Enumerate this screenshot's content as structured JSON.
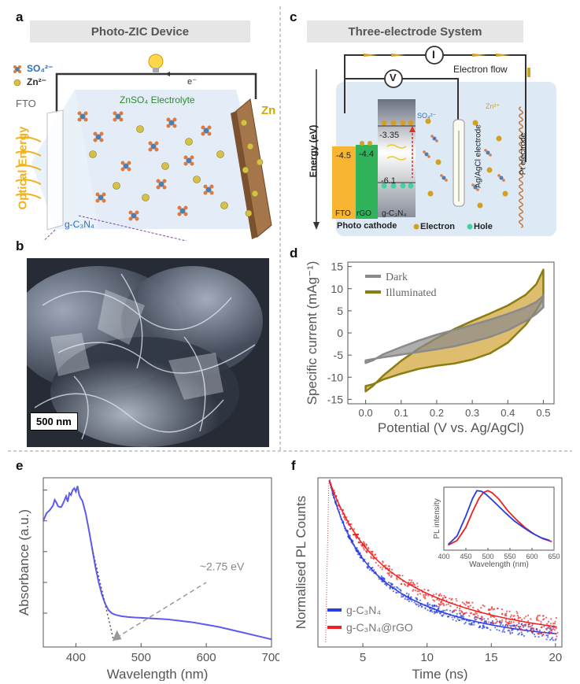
{
  "panels": {
    "a": {
      "letter": "a",
      "title": "Photo-ZIC Device",
      "legend_sulfate": "SO₄²⁻",
      "legend_zinc": "Zn²⁻",
      "fto": "FTO",
      "electrolyte": "ZnSO₄ Electrolyte",
      "zn": "Zn",
      "electron": "e⁻",
      "optical": "Optical Energy",
      "gc3n4": "g-C₃N₄"
    },
    "b": {
      "letter": "b",
      "scalebar": "500 nm"
    },
    "c": {
      "letter": "c",
      "title": "Three-electrode System",
      "current_meter": "I",
      "voltage_meter": "V",
      "electron_flow": "Electron flow",
      "energy_axis": "Energy (eV)",
      "fto_level": "-4.5",
      "rgo_level": "-4.4",
      "cb_level": "-3.35",
      "vb_level": "-6.1",
      "so4": "SO₄²⁻",
      "zn2": "Zn²⁺",
      "ref_electrode": "Ag/AgCl electrode",
      "pt_electrode": "Pt electrode",
      "fto": "FTO",
      "rgo": "rGO",
      "gc3n4": "g-C₃N₄",
      "photocathode": "Photo cathode",
      "electron_legend": "Electron",
      "hole_legend": "Hole"
    },
    "d": {
      "letter": "d"
    },
    "e": {
      "letter": "e"
    },
    "f": {
      "letter": "f"
    }
  },
  "colors": {
    "dark": "#8a8a8a",
    "illuminated": "#8a7d12",
    "illum_fill": "#d9b256",
    "blue": "#2a3de0",
    "red": "#f02020",
    "absorb": "#5b5bf0"
  },
  "chart_data": [
    {
      "id": "d",
      "type": "line",
      "xlabel": "Potential (V vs. Ag/AgCl)",
      "ylabel": "Specific current (mAg⁻¹)",
      "xlim": [
        -0.05,
        0.53
      ],
      "ylim": [
        -16,
        16
      ],
      "xticks": [
        0.0,
        0.1,
        0.2,
        0.3,
        0.4,
        0.5
      ],
      "xtick_labels": [
        "0.0",
        "0.1",
        "0.2",
        "0.3",
        "0.4",
        "0.5"
      ],
      "yticks": [
        -15,
        -10,
        -5,
        0,
        5,
        10,
        15
      ],
      "legend": "top-left",
      "series": [
        {
          "name": "Dark",
          "x": [
            0.0,
            0.02,
            0.05,
            0.1,
            0.15,
            0.2,
            0.25,
            0.3,
            0.35,
            0.4,
            0.45,
            0.48,
            0.5,
            0.5,
            0.48,
            0.45,
            0.4,
            0.35,
            0.3,
            0.25,
            0.2,
            0.15,
            0.1,
            0.05,
            0.02,
            0.0,
            0.0
          ],
          "y": [
            -6.8,
            -6.2,
            -4.8,
            -3.2,
            -1.7,
            -0.4,
            0.7,
            1.8,
            3.0,
            4.3,
            5.8,
            7.0,
            8.4,
            5.8,
            4.3,
            2.7,
            0.6,
            -0.9,
            -2.0,
            -3.0,
            -3.7,
            -4.3,
            -4.9,
            -5.5,
            -5.9,
            -6.2,
            -6.8
          ]
        },
        {
          "name": "Illuminated",
          "x": [
            0.0,
            0.02,
            0.05,
            0.1,
            0.15,
            0.2,
            0.25,
            0.3,
            0.35,
            0.4,
            0.45,
            0.48,
            0.5,
            0.5,
            0.48,
            0.45,
            0.4,
            0.35,
            0.3,
            0.25,
            0.2,
            0.15,
            0.1,
            0.05,
            0.02,
            0.0,
            0.0
          ],
          "y": [
            -13.2,
            -12.0,
            -9.6,
            -6.3,
            -3.5,
            -1.2,
            0.9,
            2.7,
            4.4,
            6.2,
            8.6,
            11.0,
            14.3,
            7.8,
            5.1,
            1.8,
            -2.2,
            -4.6,
            -6.0,
            -6.9,
            -7.4,
            -8.1,
            -9.2,
            -10.5,
            -11.6,
            -12.0,
            -13.2
          ]
        }
      ]
    },
    {
      "id": "e",
      "type": "line",
      "xlabel": "Wavelength (nm)",
      "ylabel": "Absorbance (a.u.)",
      "xlim": [
        350,
        700
      ],
      "xticks": [
        400,
        500,
        600,
        700
      ],
      "annotation": "~2.75 eV",
      "series": [
        {
          "name": "",
          "x": [
            350,
            355,
            360,
            365,
            370,
            375,
            380,
            385,
            390,
            395,
            400,
            405,
            410,
            415,
            420,
            425,
            430,
            435,
            440,
            445,
            450,
            455,
            460,
            465,
            470,
            480,
            490,
            500,
            520,
            540,
            560,
            580,
            600,
            620,
            640,
            660,
            680,
            700
          ],
          "y": [
            0.8,
            0.85,
            0.87,
            0.9,
            0.92,
            0.89,
            0.91,
            0.96,
            0.98,
            1.0,
            0.99,
            0.97,
            0.93,
            0.85,
            0.74,
            0.62,
            0.5,
            0.4,
            0.32,
            0.26,
            0.22,
            0.2,
            0.19,
            0.185,
            0.18,
            0.175,
            0.172,
            0.17,
            0.165,
            0.16,
            0.15,
            0.14,
            0.125,
            0.11,
            0.09,
            0.07,
            0.05,
            0.03
          ]
        }
      ]
    },
    {
      "id": "f",
      "type": "scatter",
      "xlabel": "Time (ns)",
      "ylabel": "Normalised PL Counts",
      "xlim": [
        1.5,
        20.5
      ],
      "xticks": [
        5,
        10,
        15,
        20
      ],
      "legend": "bottom-left",
      "series": [
        {
          "name": "g-C₃N₄",
          "tau1": 1.6,
          "tau2": 7.0,
          "a1": 0.35,
          "scatter": 0.06
        },
        {
          "name": "g-C₃N₄@rGO",
          "tau1": 2.2,
          "tau2": 9.0,
          "a1": 0.32,
          "scatter": 0.09
        }
      ],
      "inset": {
        "xlabel": "Wavelength (nm)",
        "ylabel": "PL intensity",
        "xticks": [
          400,
          450,
          500,
          550,
          600,
          650
        ],
        "xlim": [
          400,
          650
        ],
        "series": [
          {
            "name": "g-C₃N₄",
            "x": [
              410,
              430,
              450,
              465,
              475,
              485,
              495,
              505,
              520,
              540,
              560,
              580,
              600,
              620,
              640
            ],
            "y": [
              0.05,
              0.2,
              0.55,
              0.85,
              0.99,
              0.98,
              0.93,
              0.86,
              0.75,
              0.6,
              0.46,
              0.35,
              0.25,
              0.17,
              0.12
            ]
          },
          {
            "name": "g-C₃N₄@rGO",
            "x": [
              410,
              430,
              450,
              465,
              480,
              490,
              500,
              510,
              525,
              545,
              565,
              585,
              605,
              625,
              645
            ],
            "y": [
              0.04,
              0.12,
              0.35,
              0.62,
              0.86,
              0.96,
              0.99,
              0.95,
              0.84,
              0.64,
              0.48,
              0.34,
              0.23,
              0.15,
              0.1
            ]
          }
        ]
      }
    }
  ]
}
